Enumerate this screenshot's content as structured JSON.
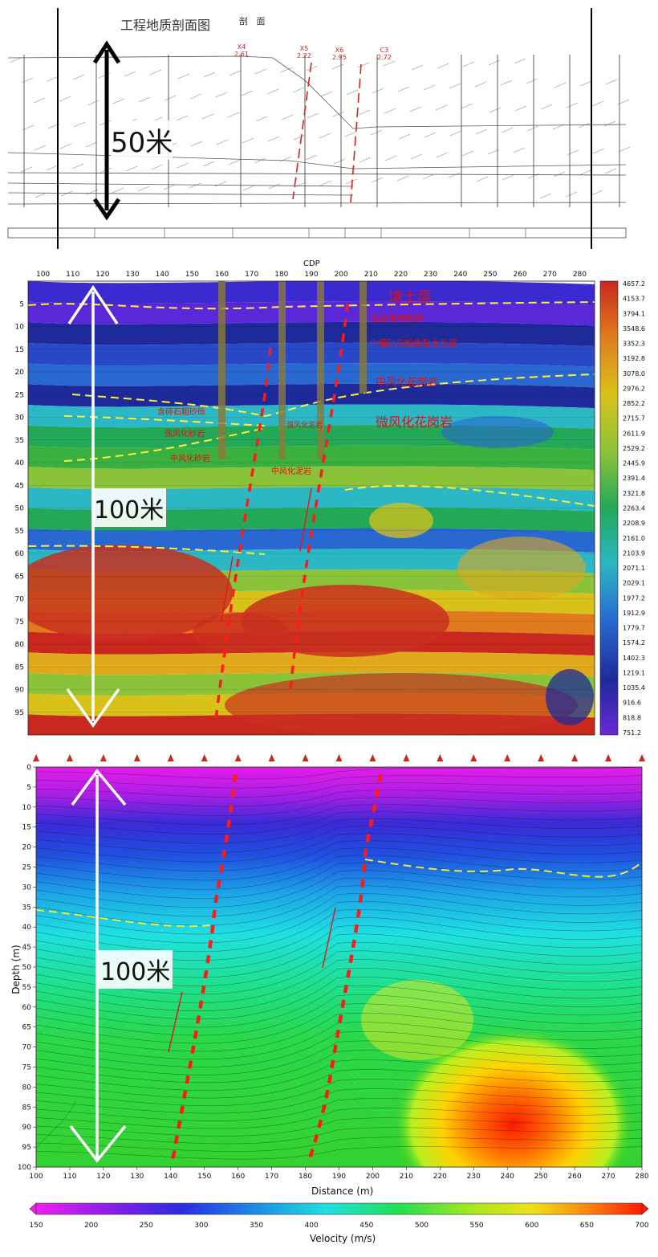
{
  "panel1": {
    "title": "工程地质剖面图",
    "title_extra": "剖   面",
    "scale_label": "50米",
    "boreholes": [
      {
        "id": "X4",
        "val": "2.61"
      },
      {
        "id": "X5",
        "val": "2.22"
      },
      {
        "id": "X6",
        "val": "2.95"
      },
      {
        "id": "C3",
        "val": "2.72"
      }
    ]
  },
  "panel2": {
    "axis_title": "CDP",
    "x_ticks": [
      100,
      110,
      120,
      130,
      140,
      150,
      160,
      170,
      180,
      190,
      200,
      210,
      220,
      230,
      240,
      250,
      260,
      270,
      280
    ],
    "y_ticks": [
      5,
      10,
      15,
      20,
      25,
      30,
      35,
      40,
      45,
      50,
      55,
      60,
      65,
      70,
      75,
      80,
      85,
      90,
      95
    ],
    "colorbar": [
      "4657.2",
      "4153.7",
      "3794.1",
      "3548.6",
      "3352.3",
      "3192.8",
      "3078.0",
      "2976.2",
      "2852.2",
      "2715.7",
      "2611.9",
      "2529.2",
      "2445.9",
      "2391.4",
      "2321.8",
      "2263.4",
      "2208.9",
      "2161.0",
      "2103.9",
      "2071.1",
      "2029.1",
      "1977.2",
      "1912.9",
      "1779.7",
      "1574.2",
      "1402.3",
      "1219.1",
      "1035.4",
      "916.6",
      "818.8",
      "751.2"
    ],
    "labels": {
      "fill": "填土层",
      "l1": "含淤泥中粗砂",
      "l2": "中细砂与粉质黏土互层",
      "l3": "中风化花岗岩",
      "l4": "微风化花岗岩",
      "l5": "含碎石粗砂砾",
      "l6": "强风化砂岩",
      "l7": "中风化砂岩",
      "l8": "强风化泥岩",
      "l9": "中风化泥岩"
    },
    "scale_label": "100米"
  },
  "panel3": {
    "chart_data": {
      "type": "heatmap",
      "xlabel": "Distance (m)",
      "ylabel": "Depth (m)",
      "xlim": [
        100,
        280
      ],
      "ylim": [
        0,
        100
      ],
      "x_ticks": [
        100,
        110,
        120,
        130,
        140,
        150,
        160,
        170,
        180,
        190,
        200,
        210,
        220,
        230,
        240,
        250,
        260,
        270,
        280
      ],
      "y_ticks": [
        0,
        5,
        10,
        15,
        20,
        25,
        30,
        35,
        40,
        45,
        50,
        55,
        60,
        65,
        70,
        75,
        80,
        85,
        90,
        95,
        100
      ],
      "colorbar_label": "Velocity (m/s)",
      "colorbar_ticks": [
        150,
        200,
        250,
        300,
        350,
        400,
        450,
        500,
        550,
        600,
        650,
        700
      ]
    },
    "scale_label": "100米"
  }
}
